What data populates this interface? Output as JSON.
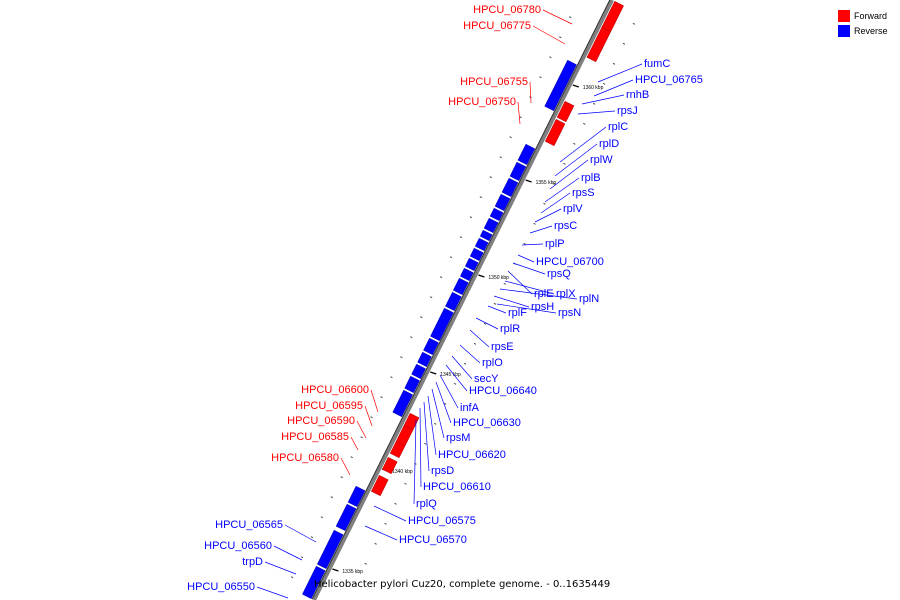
{
  "colors": {
    "forward": "#ff0000",
    "reverse": "#0000ff",
    "backbone": "#7f7f7f",
    "bg": "#ffffff"
  },
  "legend": {
    "forward_label": "Forward",
    "reverse_label": "Reverse"
  },
  "caption": "Helicobacter pylori Cuz20, complete genome. - 0..1635449",
  "ticks": [
    "1360 kbp",
    "1355 kbp",
    "1350 kbp",
    "1345 kbp",
    "1340 kbp",
    "1335 kbp"
  ],
  "forward_labels": [
    "HPCU_06780",
    "HPCU_06775",
    "HPCU_06755",
    "HPCU_06750",
    "HPCU_06600",
    "HPCU_06595",
    "HPCU_06590",
    "HPCU_06585",
    "HPCU_06580"
  ],
  "reverse_labels": [
    "fumC",
    "HPCU_06765",
    "rnhB",
    "rpsJ",
    "rplC",
    "rplD",
    "rplW",
    "rplB",
    "rpsS",
    "rplV",
    "rpsC",
    "rplP",
    "HPCU_06700",
    "rpsQ",
    "rplE",
    "rplX",
    "rplN",
    "rpsH",
    "rpsN",
    "rplF",
    "rplR",
    "rpsE",
    "rplO",
    "secY",
    "HPCU_06640",
    "infA",
    "HPCU_06630",
    "rpsM",
    "HPCU_06620",
    "rpsD",
    "HPCU_06610",
    "rplQ",
    "HPCU_06575",
    "HPCU_06570"
  ],
  "reverse_labels_left": [
    "HPCU_06565",
    "HPCU_06560",
    "trpD",
    "HPCU_06550"
  ]
}
